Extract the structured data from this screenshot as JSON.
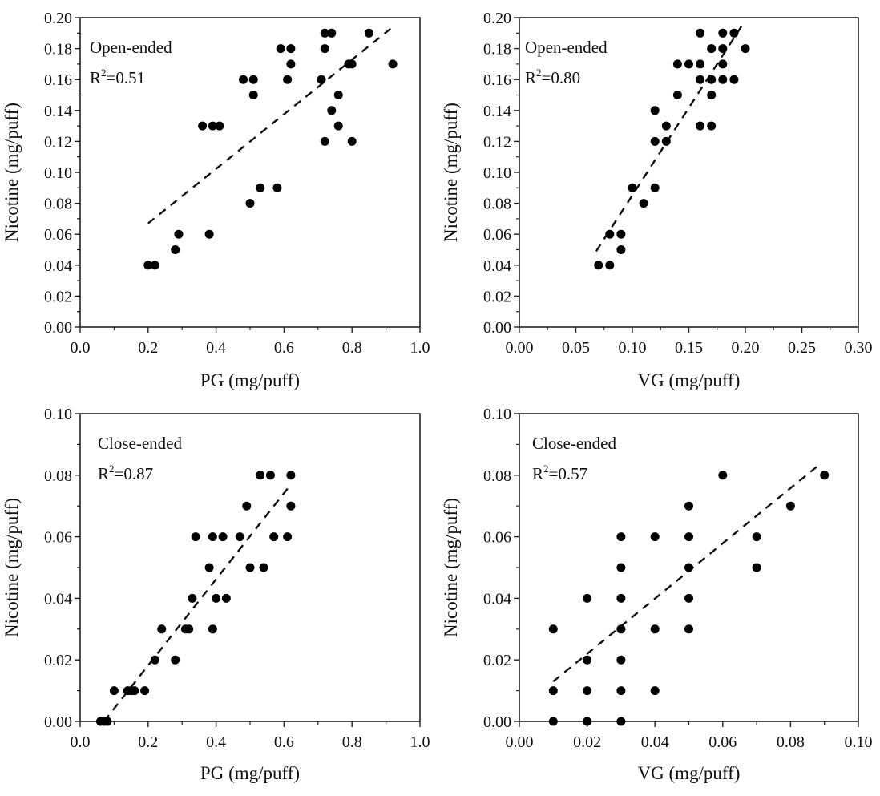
{
  "chart_data": [
    {
      "type": "scatter",
      "annotation": "Open-ended",
      "r2_label": "R",
      "r2_sup": "2",
      "r2_value": "=0.51",
      "xlabel": "PG (mg/puff)",
      "ylabel": "Nicotine (mg/puff)",
      "xlim": [
        0,
        1.0
      ],
      "ylim": [
        0,
        0.2
      ],
      "xticks": [
        "0.0",
        "0.2",
        "0.4",
        "0.6",
        "0.8",
        "1.0"
      ],
      "yticks": [
        "0.00",
        "0.02",
        "0.04",
        "0.06",
        "0.08",
        "0.10",
        "0.12",
        "0.14",
        "0.16",
        "0.18",
        "0.20"
      ],
      "marker_color": "#000000",
      "points": [
        [
          0.2,
          0.04
        ],
        [
          0.22,
          0.04
        ],
        [
          0.28,
          0.05
        ],
        [
          0.29,
          0.06
        ],
        [
          0.38,
          0.06
        ],
        [
          0.36,
          0.13
        ],
        [
          0.39,
          0.13
        ],
        [
          0.41,
          0.13
        ],
        [
          0.48,
          0.16
        ],
        [
          0.51,
          0.16
        ],
        [
          0.51,
          0.15
        ],
        [
          0.5,
          0.08
        ],
        [
          0.53,
          0.09
        ],
        [
          0.58,
          0.09
        ],
        [
          0.59,
          0.18
        ],
        [
          0.62,
          0.18
        ],
        [
          0.62,
          0.17
        ],
        [
          0.61,
          0.16
        ],
        [
          0.71,
          0.16
        ],
        [
          0.72,
          0.19
        ],
        [
          0.74,
          0.19
        ],
        [
          0.72,
          0.18
        ],
        [
          0.72,
          0.12
        ],
        [
          0.74,
          0.14
        ],
        [
          0.76,
          0.15
        ],
        [
          0.76,
          0.13
        ],
        [
          0.79,
          0.17
        ],
        [
          0.8,
          0.17
        ],
        [
          0.8,
          0.12
        ],
        [
          0.85,
          0.19
        ],
        [
          0.92,
          0.17
        ]
      ],
      "trendline": [
        [
          0.2,
          0.067
        ],
        [
          0.92,
          0.194
        ]
      ]
    },
    {
      "type": "scatter",
      "annotation": "Open-ended",
      "r2_label": "R",
      "r2_sup": "2",
      "r2_value": "=0.80",
      "xlabel": "VG (mg/puff)",
      "ylabel": "Nicotine (mg/puff)",
      "xlim": [
        0,
        0.3
      ],
      "ylim": [
        0,
        0.2
      ],
      "xticks": [
        "0.00",
        "0.05",
        "0.10",
        "0.15",
        "0.20",
        "0.25",
        "0.30"
      ],
      "yticks": [
        "0.00",
        "0.02",
        "0.04",
        "0.06",
        "0.08",
        "0.10",
        "0.12",
        "0.14",
        "0.16",
        "0.18",
        "0.20"
      ],
      "marker_color": "#000000",
      "points": [
        [
          0.07,
          0.04
        ],
        [
          0.08,
          0.04
        ],
        [
          0.08,
          0.06
        ],
        [
          0.09,
          0.06
        ],
        [
          0.09,
          0.05
        ],
        [
          0.1,
          0.09
        ],
        [
          0.12,
          0.09
        ],
        [
          0.11,
          0.08
        ],
        [
          0.12,
          0.14
        ],
        [
          0.12,
          0.12
        ],
        [
          0.13,
          0.12
        ],
        [
          0.13,
          0.13
        ],
        [
          0.14,
          0.17
        ],
        [
          0.15,
          0.17
        ],
        [
          0.16,
          0.17
        ],
        [
          0.14,
          0.15
        ],
        [
          0.16,
          0.19
        ],
        [
          0.18,
          0.19
        ],
        [
          0.19,
          0.19
        ],
        [
          0.17,
          0.18
        ],
        [
          0.18,
          0.18
        ],
        [
          0.2,
          0.18
        ],
        [
          0.18,
          0.17
        ],
        [
          0.16,
          0.16
        ],
        [
          0.17,
          0.16
        ],
        [
          0.18,
          0.16
        ],
        [
          0.19,
          0.16
        ],
        [
          0.17,
          0.15
        ],
        [
          0.16,
          0.13
        ],
        [
          0.17,
          0.13
        ]
      ],
      "trendline": [
        [
          0.068,
          0.049
        ],
        [
          0.198,
          0.196
        ]
      ]
    },
    {
      "type": "scatter",
      "annotation": "Close-ended",
      "r2_label": "R",
      "r2_sup": "2",
      "r2_value": "=0.87",
      "xlabel": "PG (mg/puff)",
      "ylabel": "Nicotine (mg/puff)",
      "xlim": [
        0,
        1.0
      ],
      "ylim": [
        0,
        0.1
      ],
      "xticks": [
        "0.0",
        "0.2",
        "0.4",
        "0.6",
        "0.8",
        "1.0"
      ],
      "yticks": [
        "0.00",
        "0.02",
        "0.04",
        "0.06",
        "0.08",
        "0.10"
      ],
      "marker_color": "#000000",
      "points": [
        [
          0.06,
          0.0
        ],
        [
          0.07,
          0.0
        ],
        [
          0.08,
          0.0
        ],
        [
          0.1,
          0.01
        ],
        [
          0.14,
          0.01
        ],
        [
          0.15,
          0.01
        ],
        [
          0.16,
          0.01
        ],
        [
          0.19,
          0.01
        ],
        [
          0.22,
          0.02
        ],
        [
          0.28,
          0.02
        ],
        [
          0.24,
          0.03
        ],
        [
          0.31,
          0.03
        ],
        [
          0.32,
          0.03
        ],
        [
          0.39,
          0.03
        ],
        [
          0.33,
          0.04
        ],
        [
          0.4,
          0.04
        ],
        [
          0.43,
          0.04
        ],
        [
          0.38,
          0.05
        ],
        [
          0.5,
          0.05
        ],
        [
          0.54,
          0.05
        ],
        [
          0.34,
          0.06
        ],
        [
          0.39,
          0.06
        ],
        [
          0.42,
          0.06
        ],
        [
          0.47,
          0.06
        ],
        [
          0.57,
          0.06
        ],
        [
          0.61,
          0.06
        ],
        [
          0.49,
          0.07
        ],
        [
          0.62,
          0.07
        ],
        [
          0.53,
          0.08
        ],
        [
          0.56,
          0.08
        ],
        [
          0.62,
          0.08
        ]
      ],
      "trendline": [
        [
          0.07,
          0.0
        ],
        [
          0.62,
          0.077
        ]
      ]
    },
    {
      "type": "scatter",
      "annotation": "Close-ended",
      "r2_label": "R",
      "r2_sup": "2",
      "r2_value": "=0.57",
      "xlabel": "VG (mg/puff)",
      "ylabel": "Nicotine (mg/puff)",
      "xlim": [
        0,
        0.1
      ],
      "ylim": [
        0,
        0.1
      ],
      "xticks": [
        "0.00",
        "0.02",
        "0.04",
        "0.06",
        "0.08",
        "0.10"
      ],
      "yticks": [
        "0.00",
        "0.02",
        "0.04",
        "0.06",
        "0.08",
        "0.10"
      ],
      "marker_color": "#000000",
      "points": [
        [
          0.01,
          0.0
        ],
        [
          0.02,
          0.0
        ],
        [
          0.03,
          0.0
        ],
        [
          0.01,
          0.01
        ],
        [
          0.02,
          0.01
        ],
        [
          0.03,
          0.01
        ],
        [
          0.04,
          0.01
        ],
        [
          0.02,
          0.02
        ],
        [
          0.03,
          0.02
        ],
        [
          0.01,
          0.03
        ],
        [
          0.03,
          0.03
        ],
        [
          0.04,
          0.03
        ],
        [
          0.05,
          0.03
        ],
        [
          0.02,
          0.04
        ],
        [
          0.03,
          0.04
        ],
        [
          0.05,
          0.04
        ],
        [
          0.03,
          0.05
        ],
        [
          0.05,
          0.05
        ],
        [
          0.07,
          0.05
        ],
        [
          0.03,
          0.06
        ],
        [
          0.04,
          0.06
        ],
        [
          0.05,
          0.06
        ],
        [
          0.07,
          0.06
        ],
        [
          0.05,
          0.07
        ],
        [
          0.08,
          0.07
        ],
        [
          0.06,
          0.08
        ],
        [
          0.09,
          0.08
        ]
      ],
      "trendline": [
        [
          0.01,
          0.013
        ],
        [
          0.088,
          0.083
        ]
      ]
    }
  ]
}
